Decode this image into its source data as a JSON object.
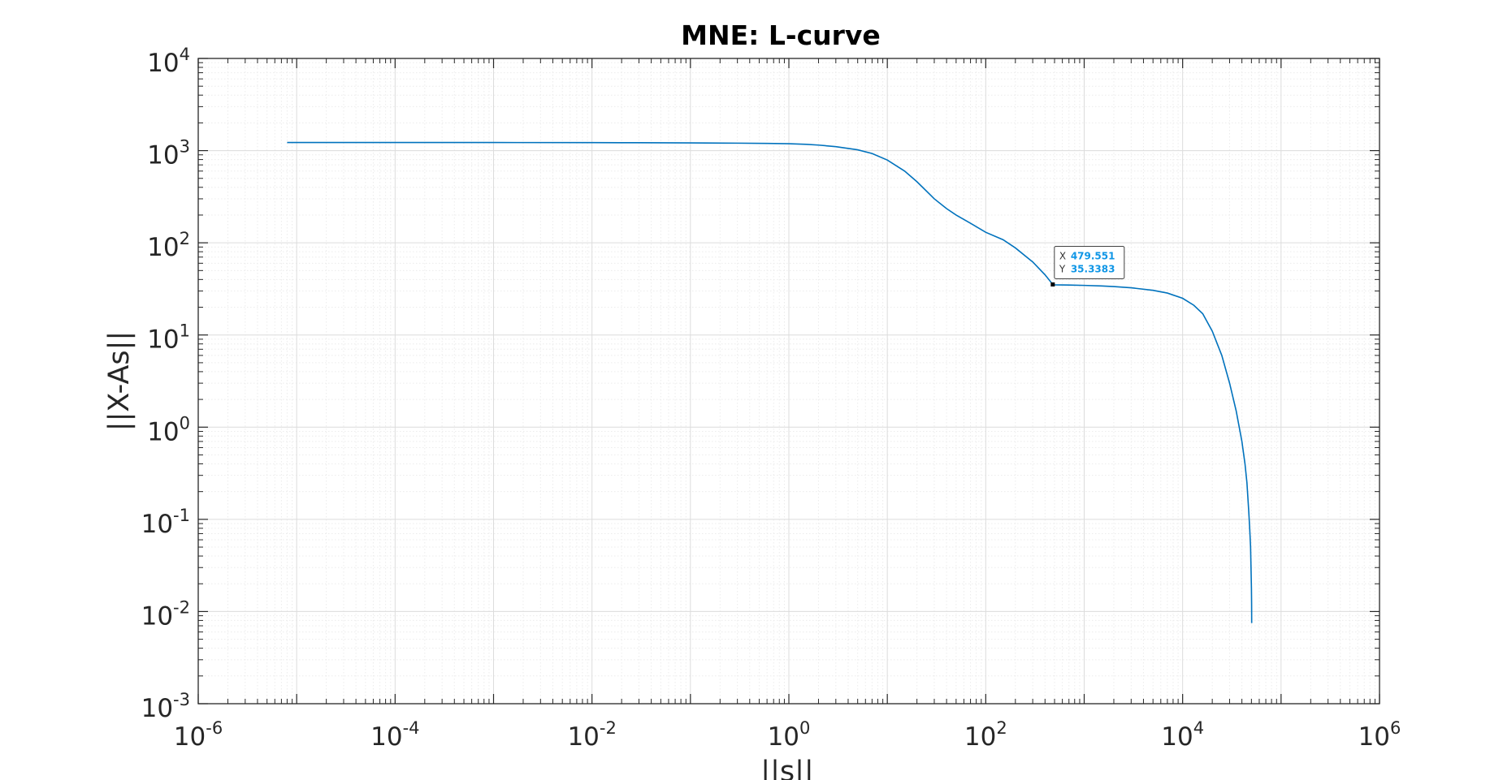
{
  "chart_data": {
    "type": "line",
    "title": "MNE: L-curve",
    "xlabel": "||s||",
    "ylabel": "||X-As||",
    "xscale": "log",
    "yscale": "log",
    "xlim": [
      1e-06,
      1000000.0
    ],
    "ylim": [
      0.001,
      10000.0
    ],
    "grid": true,
    "minor_grid": true,
    "x_ticks": [
      {
        "base": "10",
        "exp": "-6"
      },
      {
        "base": "10",
        "exp": "-4"
      },
      {
        "base": "10",
        "exp": "-2"
      },
      {
        "base": "10",
        "exp": "0"
      },
      {
        "base": "10",
        "exp": "2"
      },
      {
        "base": "10",
        "exp": "4"
      },
      {
        "base": "10",
        "exp": "6"
      }
    ],
    "y_ticks": [
      {
        "base": "10",
        "exp": "-3"
      },
      {
        "base": "10",
        "exp": "-2"
      },
      {
        "base": "10",
        "exp": "-1"
      },
      {
        "base": "10",
        "exp": "0"
      },
      {
        "base": "10",
        "exp": "1"
      },
      {
        "base": "10",
        "exp": "2"
      },
      {
        "base": "10",
        "exp": "3"
      },
      {
        "base": "10",
        "exp": "4"
      }
    ],
    "line_color": "#0072bd",
    "series": [
      {
        "x": [
          8e-06,
          1e-05,
          0.0001,
          0.001,
          0.01,
          0.03,
          0.1,
          0.3,
          0.6,
          1,
          1.5,
          2,
          3,
          5,
          7,
          10,
          15,
          20,
          30,
          40,
          50,
          70,
          100,
          150,
          200,
          300,
          400,
          479.551,
          500,
          700,
          1000,
          1500,
          2000,
          3000,
          5000,
          7000,
          10000,
          13000,
          16000,
          20000,
          25000,
          30000,
          35000,
          40000,
          43000,
          45000,
          47000,
          48000,
          49000,
          49500,
          50000,
          50200,
          50300
        ],
        "y": [
          1225,
          1225,
          1225,
          1224,
          1222,
          1218,
          1212,
          1205,
          1198,
          1188,
          1170,
          1148,
          1105,
          1020,
          930,
          790,
          600,
          460,
          300,
          235,
          200,
          163,
          130,
          108,
          88,
          62,
          45,
          35.3383,
          35,
          34.8,
          34.5,
          34,
          33.5,
          32.5,
          30.5,
          28.5,
          25,
          21,
          17,
          11,
          6,
          3,
          1.5,
          0.7,
          0.4,
          0.25,
          0.12,
          0.08,
          0.05,
          0.03,
          0.018,
          0.012,
          0.0075
        ]
      }
    ],
    "datatip": {
      "x_label": "X",
      "x_value": "479.551",
      "y_label": "Y",
      "y_value": "35.3383",
      "x": 479.551,
      "y": 35.3383
    }
  },
  "colors": {
    "background": "#ffffff",
    "axes": "#262626",
    "grid_major": "#dcdcdc",
    "grid_minor": "#ececec",
    "line": "#0072bd",
    "datatip_value": "#0f96e6"
  }
}
